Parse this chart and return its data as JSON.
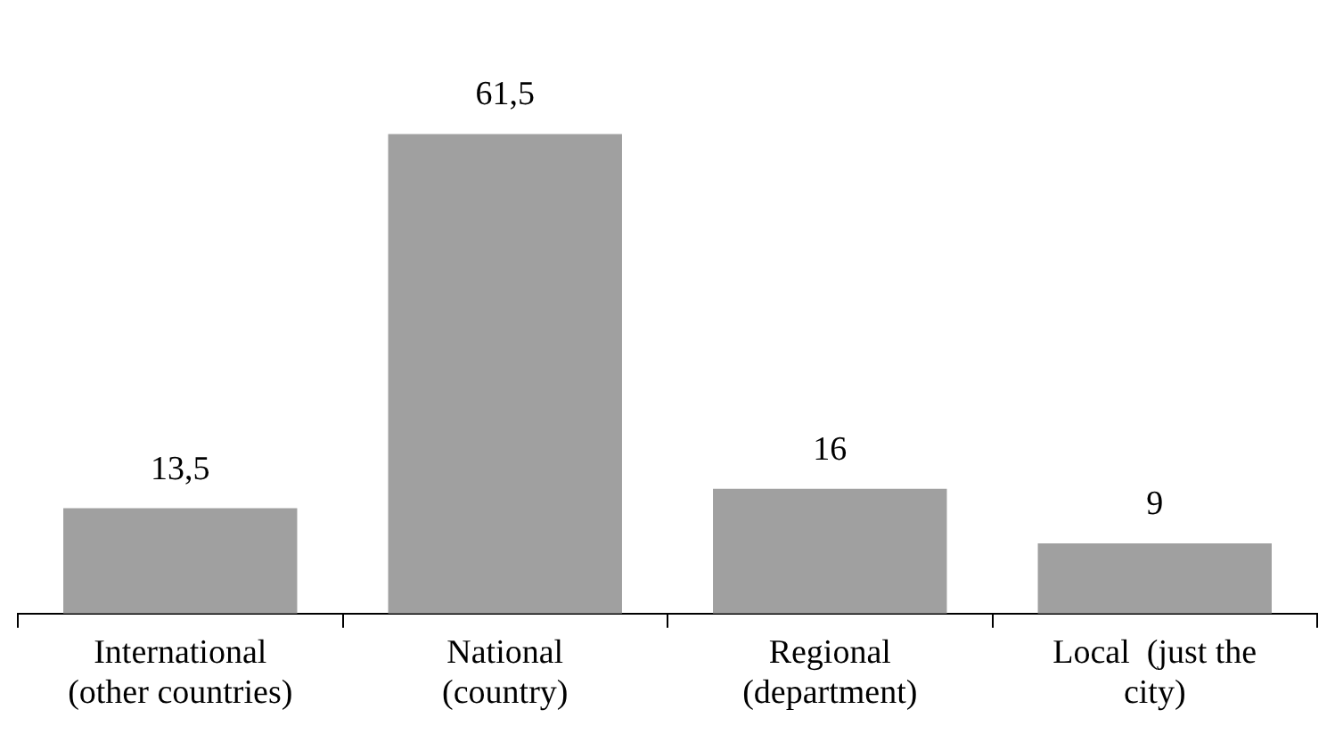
{
  "chart_data": {
    "type": "bar",
    "categories": [
      "International (other countries)",
      "National (country)",
      "Regional (department)",
      "Local  (just the city)"
    ],
    "values": [
      13.5,
      61.5,
      16,
      9
    ],
    "value_labels": [
      "13,5",
      "61,5",
      "16",
      "9"
    ],
    "color": "#a0a0a0",
    "grid": false,
    "legend": false
  }
}
